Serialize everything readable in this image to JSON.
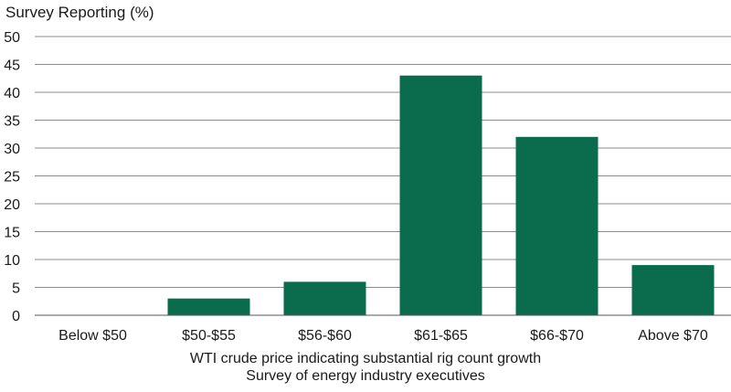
{
  "chart_data": {
    "type": "bar",
    "ylabel": "Survey Reporting (%)",
    "xlabel_lines": [
      "WTI crude price indicating substantial rig count growth",
      "Survey of energy industry executives"
    ],
    "categories": [
      "Below $50",
      "$50-$55",
      "$56-$60",
      "$61-$65",
      "$66-$70",
      "Above $70"
    ],
    "values": [
      0,
      3,
      6,
      43,
      32,
      9
    ],
    "ylim": [
      0,
      50
    ],
    "yticks": [
      0,
      5,
      10,
      15,
      20,
      25,
      30,
      35,
      40,
      45,
      50
    ],
    "grid": true,
    "bar_color": "#0b6b4d"
  }
}
